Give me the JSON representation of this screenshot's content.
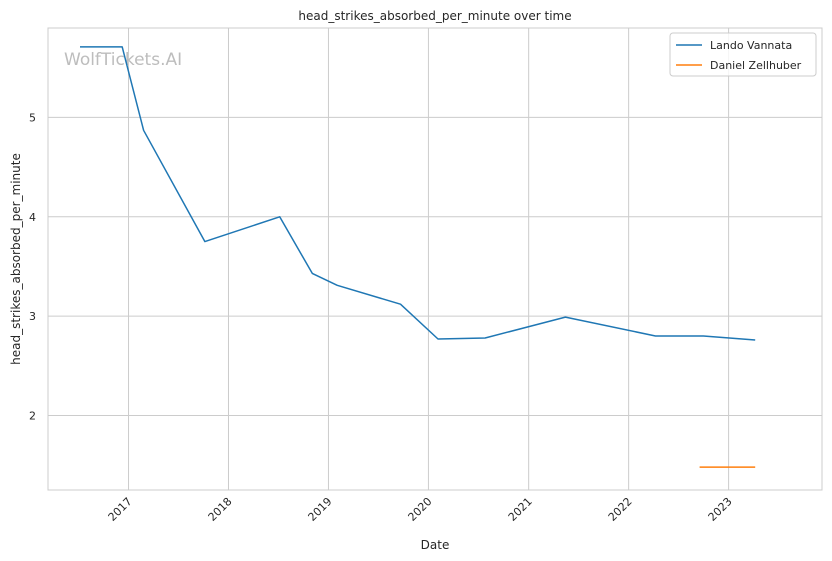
{
  "chart_data": {
    "type": "line",
    "title": "head_strikes_absorbed_per_minute over time",
    "xlabel": "Date",
    "ylabel": "head_strikes_absorbed_per_minute",
    "watermark": "WolfTickets.AI",
    "xlim": [
      "2016-03-13",
      "2023-12-08"
    ],
    "ylim": [
      1.25,
      5.9
    ],
    "x_ticks": [
      "2017",
      "2018",
      "2019",
      "2020",
      "2021",
      "2022",
      "2023"
    ],
    "y_ticks": [
      "2",
      "3",
      "4",
      "5"
    ],
    "grid": true,
    "legend_position": "top-right",
    "colors": {
      "Lando Vannata": "#1f77b4",
      "Daniel Zellhuber": "#ff7f0e"
    },
    "series": [
      {
        "name": "Lando Vannata",
        "color": "#1f77b4",
        "points": [
          {
            "x": "2016-07-08",
            "y": 5.71
          },
          {
            "x": "2016-12-09",
            "y": 5.71
          },
          {
            "x": "2017-02-25",
            "y": 4.87
          },
          {
            "x": "2017-10-07",
            "y": 3.75
          },
          {
            "x": "2018-07-07",
            "y": 4.0
          },
          {
            "x": "2018-11-03",
            "y": 3.43
          },
          {
            "x": "2019-02-02",
            "y": 3.31
          },
          {
            "x": "2019-09-21",
            "y": 3.12
          },
          {
            "x": "2020-02-05",
            "y": 2.77
          },
          {
            "x": "2020-07-26",
            "y": 2.78
          },
          {
            "x": "2021-05-15",
            "y": 2.99
          },
          {
            "x": "2022-04-09",
            "y": 2.8
          },
          {
            "x": "2022-10-01",
            "y": 2.8
          },
          {
            "x": "2023-04-08",
            "y": 2.76
          }
        ]
      },
      {
        "name": "Daniel Zellhuber",
        "color": "#ff7f0e",
        "points": [
          {
            "x": "2022-09-17",
            "y": 1.48
          },
          {
            "x": "2023-04-08",
            "y": 1.48
          }
        ]
      }
    ]
  }
}
